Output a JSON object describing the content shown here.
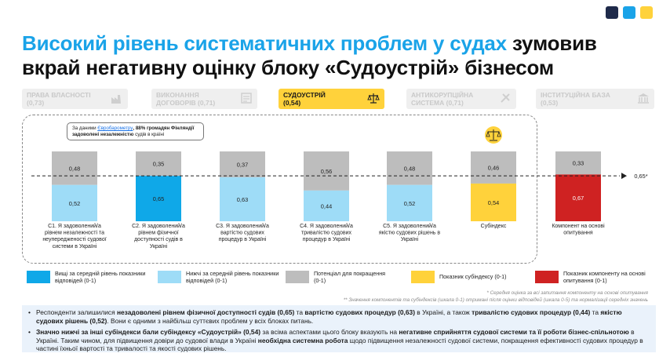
{
  "brand_colors": [
    "#1e2a4a",
    "#1aa3e8",
    "#ffd23b"
  ],
  "title": {
    "highlight": "Високий рівень систематичних проблем у судах",
    "rest": " зумовив вкрай негативну оцінку блоку «Судоустрій» бізнесом"
  },
  "tabs": [
    {
      "line1": "ПРАВА ВЛАСНОСТІ",
      "line2": "(0,73)",
      "icon": "factory-icon",
      "active": false
    },
    {
      "line1": "ВИКОНАННЯ",
      "line2": "ДОГОВОРІВ (0,71)",
      "icon": "contract-icon",
      "active": false
    },
    {
      "line1": "СУДОУСТРІЙ",
      "line2": "(0,54)",
      "icon": "scales-icon",
      "active": true
    },
    {
      "line1": "АНТИКОРУПЦІЙНА",
      "line2": "СИСТЕМА (0,71)",
      "icon": "anticorruption-icon",
      "active": false
    },
    {
      "line1": "ІНСТИТУЦІЙНА БАЗА",
      "line2": "(0,53)",
      "icon": "institution-icon",
      "active": false
    }
  ],
  "note": {
    "prefix": "За даними ",
    "link": "Євробарометру",
    "bold": ", 88% громадян Фінляндії задоволені незалежністю",
    "suffix": " судів в країні"
  },
  "chart_data": {
    "type": "bar",
    "stacked": true,
    "ylim": [
      0,
      1
    ],
    "average_line": {
      "value": 0.65,
      "label": "0,65*"
    },
    "categories": [
      "С1. Я задоволений/а рівнем незалежності та неупередженості судової системи в Україні",
      "С2. Я задоволений/а рівнем фізичної доступності судів в Україні",
      "С3. Я задоволений/а вартістю судових процедур в Україні",
      "С4. Я задоволений/а тривалістю судових процедур в Україні",
      "С5. Я задоволений/а якістю судових рішень в Україні",
      "Субіндекс",
      "Компонент на основі опитування"
    ],
    "score_labels": [
      "0,52",
      "0,65",
      "0,63",
      "0,44",
      "0,52",
      "0,54",
      "0,67"
    ],
    "potential_labels": [
      "0,48",
      "0,35",
      "0,37",
      "0,56",
      "0,48",
      "0,46",
      "0,33"
    ],
    "score": [
      0.52,
      0.65,
      0.63,
      0.44,
      0.52,
      0.54,
      0.67
    ],
    "potential": [
      0.48,
      0.35,
      0.37,
      0.56,
      0.48,
      0.46,
      0.33
    ],
    "score_colors": [
      "#9edcf7",
      "#0fa8e8",
      "#9edcf7",
      "#9edcf7",
      "#9edcf7",
      "#ffd23b",
      "#cf2222"
    ],
    "potential_color": "#bdbdbd"
  },
  "legend": [
    {
      "label": "Вищі за середній рівень показники відповідей (0-1)",
      "color": "#0fa8e8"
    },
    {
      "label": "Нижчі за середній рівень показники відповідей (0-1)",
      "color": "#9edcf7"
    },
    {
      "label": "Потенціал для покращення (0-1)",
      "color": "#bdbdbd"
    },
    {
      "label": "Показник субіндексу (0-1)",
      "color": "#ffd23b"
    },
    {
      "label": "Показник компоненту на основі опитування (0-1)",
      "color": "#cf2222"
    }
  ],
  "footnotes": {
    "line1": "* Середня оцінка за всі запитання компоненту на основі опитування",
    "line2": "** Значення компонентів та субіндексів (шкала 0-1) отримані після оцінки відповідей (шкала 0-5) та нормалізації середніх значень"
  },
  "bullets": [
    {
      "a": "Респонденти залишилися ",
      "b1": "незадоволені рівнем фізичної доступності судів (0,65)",
      "c": " та ",
      "b2": "вартістю судових процедур (0,63)",
      "d": " в Україні, а також ",
      "b3": "тривалістю судових процедур (0,44)",
      "e": " та ",
      "b4": "якістю судових рішень (0,52)",
      "f": ". Вони є одними з найбільш суттєвих проблем у всіх блоках питань."
    },
    {
      "b1": "Значно нижчі за інші субіндекси бали субіндексу «Судоустрій» (0,54)",
      "a": " за всіма аспектами цього блоку вказують на ",
      "b2": "негативне сприйняття судової системи та її роботи бізнес-спільнотою",
      "c": " в Україні. Таким чином, для підвищення довіри до судової влади в Україні ",
      "b3": "необхідна системна робота",
      "d": " щодо підвищення незалежності судової системи, покращення ефективності судових процедур в частині їхньої вартості та тривалості та якості судових рішень."
    }
  ]
}
